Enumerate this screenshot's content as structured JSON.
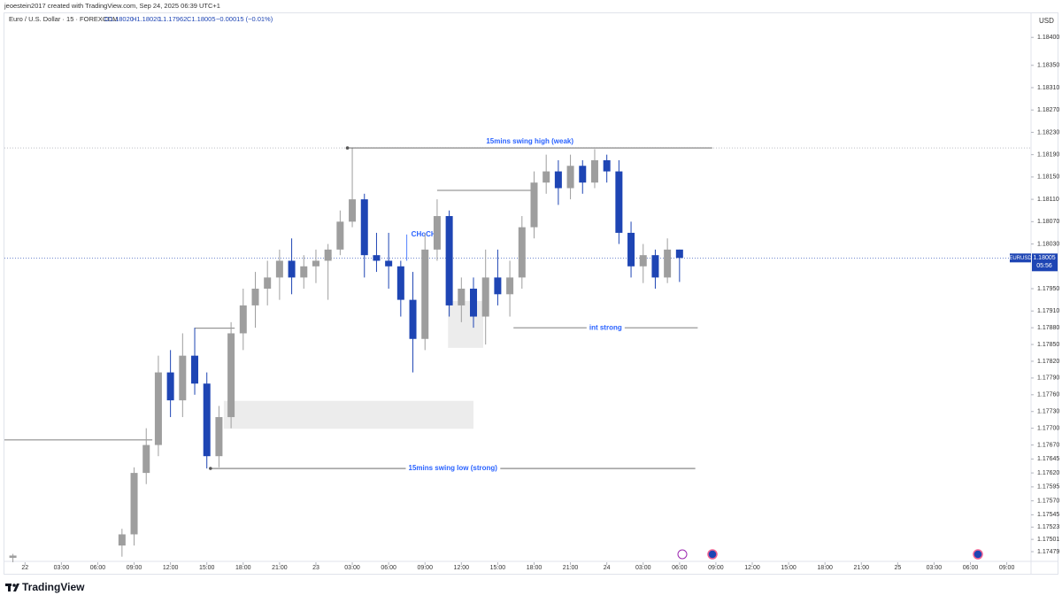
{
  "header": {
    "credit": "jeoestein2017 created with TradingView.com, Sep 24, 2025 06:39 UTC+1",
    "symbol": "Euro / U.S. Dollar · 15 · FOREXCOM",
    "open": "O1.18020",
    "high": "H1.18020",
    "low": "L1.17962",
    "close": "C1.18005",
    "change": "−0.00015 (−0.01%)",
    "currency": "USD"
  },
  "footer": {
    "brand": "TradingView"
  },
  "chart_data": {
    "type": "candlestick",
    "x": [
      -1,
      8,
      9,
      10,
      11,
      12,
      13,
      14,
      15,
      16,
      17,
      18,
      19,
      20,
      21,
      22,
      23,
      24,
      25,
      26,
      27,
      28,
      29,
      30,
      31,
      32,
      33,
      34,
      35,
      36,
      37,
      38,
      39,
      40,
      41,
      42,
      43,
      44,
      45,
      46,
      47,
      48,
      49,
      50,
      51,
      52,
      53,
      54
    ],
    "open": [
      1.17468,
      1.1749,
      1.1751,
      1.1762,
      1.1767,
      1.178,
      1.1775,
      1.1783,
      1.1778,
      1.1765,
      1.1772,
      1.1787,
      1.1792,
      1.1795,
      1.1797,
      1.18,
      1.1797,
      1.1799,
      1.18,
      1.1802,
      1.1807,
      1.1811,
      1.1801,
      1.18,
      1.1799,
      1.1793,
      1.1786,
      1.1802,
      1.1808,
      1.1792,
      1.1795,
      1.179,
      1.1797,
      1.1794,
      1.1797,
      1.1806,
      1.1814,
      1.1816,
      1.1813,
      1.1817,
      1.1814,
      1.1818,
      1.1816,
      1.1805,
      1.1799,
      1.1801,
      1.1797,
      1.1802
    ],
    "high": [
      1.17475,
      1.1752,
      1.1763,
      1.177,
      1.1783,
      1.1784,
      1.1787,
      1.1788,
      1.178,
      1.1774,
      1.1789,
      1.1795,
      1.1798,
      1.18,
      1.1802,
      1.1804,
      1.1801,
      1.1802,
      1.1803,
      1.1809,
      1.18202,
      1.1812,
      1.1805,
      1.1805,
      1.18,
      1.1798,
      1.1805,
      1.1811,
      1.1809,
      1.1797,
      1.1797,
      1.1802,
      1.1802,
      1.18,
      1.1808,
      1.1816,
      1.1819,
      1.1818,
      1.1819,
      1.1818,
      1.182,
      1.1819,
      1.1818,
      1.1807,
      1.1803,
      1.1802,
      1.1804,
      1.1802
    ],
    "low": [
      1.1746,
      1.1747,
      1.1749,
      1.176,
      1.1765,
      1.1772,
      1.1772,
      1.1776,
      1.17628,
      1.1763,
      1.177,
      1.1784,
      1.1788,
      1.1792,
      1.1793,
      1.1794,
      1.1795,
      1.1796,
      1.1793,
      1.1801,
      1.1806,
      1.1797,
      1.1798,
      1.1795,
      1.179,
      1.178,
      1.1784,
      1.18,
      1.179,
      1.1789,
      1.1788,
      1.1785,
      1.1792,
      1.179,
      1.1795,
      1.1804,
      1.1812,
      1.181,
      1.1811,
      1.1812,
      1.1813,
      1.1814,
      1.1803,
      1.1797,
      1.1796,
      1.1795,
      1.1796,
      1.17962
    ],
    "close": [
      1.17472,
      1.1751,
      1.1762,
      1.1767,
      1.178,
      1.1775,
      1.1783,
      1.1778,
      1.1765,
      1.1772,
      1.1787,
      1.1792,
      1.1795,
      1.1797,
      1.18,
      1.1797,
      1.1799,
      1.18,
      1.1802,
      1.1807,
      1.1811,
      1.1801,
      1.18,
      1.1799,
      1.1793,
      1.1786,
      1.1802,
      1.1808,
      1.1792,
      1.1795,
      1.179,
      1.1797,
      1.1794,
      1.1797,
      1.1806,
      1.1814,
      1.1816,
      1.1813,
      1.1817,
      1.1814,
      1.1818,
      1.1816,
      1.1805,
      1.1799,
      1.1801,
      1.1797,
      1.1802,
      1.18005
    ],
    "up_color": "#9e9e9e",
    "down_color": "#1e45b4",
    "xlim": [
      -1.7,
      83
    ],
    "xticks": [
      {
        "value": 0,
        "label": "22"
      },
      {
        "value": 3,
        "label": "03:00"
      },
      {
        "value": 6,
        "label": "06:00"
      },
      {
        "value": 9,
        "label": "09:00"
      },
      {
        "value": 12,
        "label": "12:00"
      },
      {
        "value": 15,
        "label": "15:00"
      },
      {
        "value": 18,
        "label": "18:00"
      },
      {
        "value": 21,
        "label": "21:00"
      },
      {
        "value": 24,
        "label": "23"
      },
      {
        "value": 27,
        "label": "03:00"
      },
      {
        "value": 30,
        "label": "06:00"
      },
      {
        "value": 33,
        "label": "09:00"
      },
      {
        "value": 36,
        "label": "12:00"
      },
      {
        "value": 39,
        "label": "15:00"
      },
      {
        "value": 42,
        "label": "18:00"
      },
      {
        "value": 45,
        "label": "21:00"
      },
      {
        "value": 48,
        "label": "24"
      },
      {
        "value": 51,
        "label": "03:00"
      },
      {
        "value": 54,
        "label": "06:00"
      },
      {
        "value": 57,
        "label": "09:00"
      },
      {
        "value": 60,
        "label": "12:00"
      },
      {
        "value": 63,
        "label": "15:00"
      },
      {
        "value": 66,
        "label": "18:00"
      },
      {
        "value": 69,
        "label": "21:00"
      },
      {
        "value": 72,
        "label": "25"
      },
      {
        "value": 75,
        "label": "03:00"
      },
      {
        "value": 78,
        "label": "06:00"
      },
      {
        "value": 81,
        "label": "09:00"
      }
    ],
    "ylim": [
      1.1746,
      1.1844
    ],
    "yticks": [
      {
        "value": 1.184,
        "label": "1.18400"
      },
      {
        "value": 1.1835,
        "label": "1.18350"
      },
      {
        "value": 1.1831,
        "label": "1.18310"
      },
      {
        "value": 1.1827,
        "label": "1.18270"
      },
      {
        "value": 1.1823,
        "label": "1.18230"
      },
      {
        "value": 1.1819,
        "label": "1.18190"
      },
      {
        "value": 1.1815,
        "label": "1.18150"
      },
      {
        "value": 1.1811,
        "label": "1.18110"
      },
      {
        "value": 1.1807,
        "label": "1.18070"
      },
      {
        "value": 1.1803,
        "label": "1.18030"
      },
      {
        "value": 1.1795,
        "label": "1.17950"
      },
      {
        "value": 1.1791,
        "label": "1.17910"
      },
      {
        "value": 1.1788,
        "label": "1.17880"
      },
      {
        "value": 1.1785,
        "label": "1.17850"
      },
      {
        "value": 1.1782,
        "label": "1.17820"
      },
      {
        "value": 1.1779,
        "label": "1.17790"
      },
      {
        "value": 1.1776,
        "label": "1.17760"
      },
      {
        "value": 1.1773,
        "label": "1.17730"
      },
      {
        "value": 1.177,
        "label": "1.17700"
      },
      {
        "value": 1.1767,
        "label": "1.17670"
      },
      {
        "value": 1.17645,
        "label": "1.17645"
      },
      {
        "value": 1.1762,
        "label": "1.17620"
      },
      {
        "value": 1.17595,
        "label": "1.17595"
      },
      {
        "value": 1.1757,
        "label": "1.17570"
      },
      {
        "value": 1.17545,
        "label": "1.17545"
      },
      {
        "value": 1.17523,
        "label": "1.17523"
      },
      {
        "value": 1.17501,
        "label": "1.17501"
      },
      {
        "value": 1.17479,
        "label": "1.17479"
      }
    ],
    "levels": [
      {
        "text": "15mins swing high (weak)",
        "price": 1.18202,
        "x": [
          26.6,
          56.7
        ]
      },
      {
        "text": "int strong",
        "price": 1.1788,
        "x": [
          40.3,
          55.5
        ]
      },
      {
        "text": "15mins swing low (strong)",
        "price": 1.17628,
        "x": [
          15.3,
          55.3
        ]
      }
    ],
    "lines": [
      {
        "price": 1.17679,
        "x": [
          -1.7,
          10.5
        ]
      },
      {
        "price": 1.17879,
        "x": [
          14.0,
          17.3
        ]
      },
      {
        "price": 1.18126,
        "x": [
          34.0,
          42.1
        ]
      }
    ],
    "choch": {
      "text": "CHoCH",
      "x": 31.5,
      "price": [
        1.18047,
        1.18
      ]
    },
    "zones": [
      {
        "x": [
          34.9,
          37.8
        ],
        "price": [
          1.17844,
          1.17928
        ]
      },
      {
        "x": [
          16.4,
          37.0
        ],
        "price": [
          1.17699,
          1.17749
        ]
      }
    ],
    "last": {
      "symbol": "EURUSD",
      "price": {
        "value": 1.18005,
        "label": "1.18005"
      },
      "countdown": "05:56"
    }
  }
}
